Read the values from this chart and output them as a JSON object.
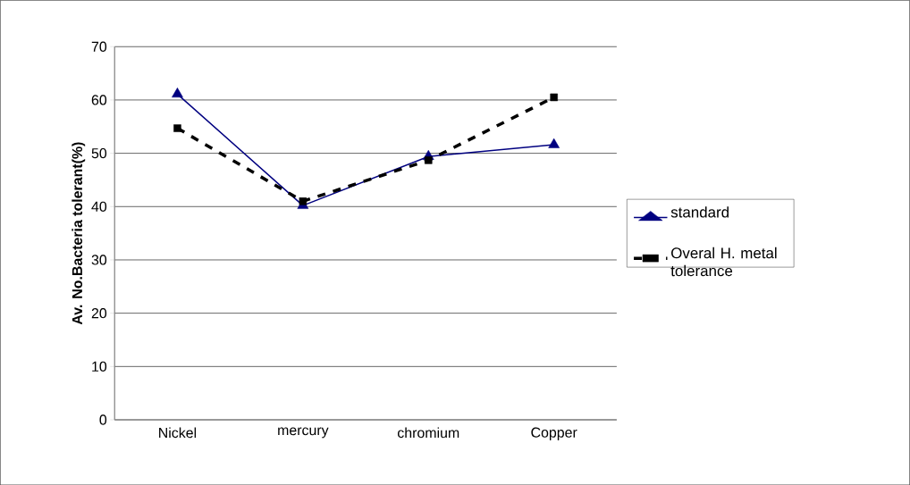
{
  "chart_data": {
    "type": "line",
    "ylabel": "Av. No.Bacteria tolerant(%)",
    "categories": [
      "Nickel",
      "mercury",
      "chromium",
      "Copper"
    ],
    "series": [
      {
        "name": "standard",
        "color": "#000080",
        "values": [
          61.1,
          40.2,
          49.4,
          51.6
        ],
        "marker": "triangle",
        "line_style": "solid"
      },
      {
        "name": "Overal H. metal tolerance",
        "color": "#000000",
        "values": [
          54.7,
          41,
          48.7,
          60.5
        ],
        "marker": "square",
        "line_style": "dashed"
      }
    ],
    "ylim": [
      0,
      70
    ],
    "yticks": [
      0,
      10,
      20,
      30,
      40,
      50,
      60,
      70
    ],
    "grid": "y",
    "legend": "right"
  }
}
